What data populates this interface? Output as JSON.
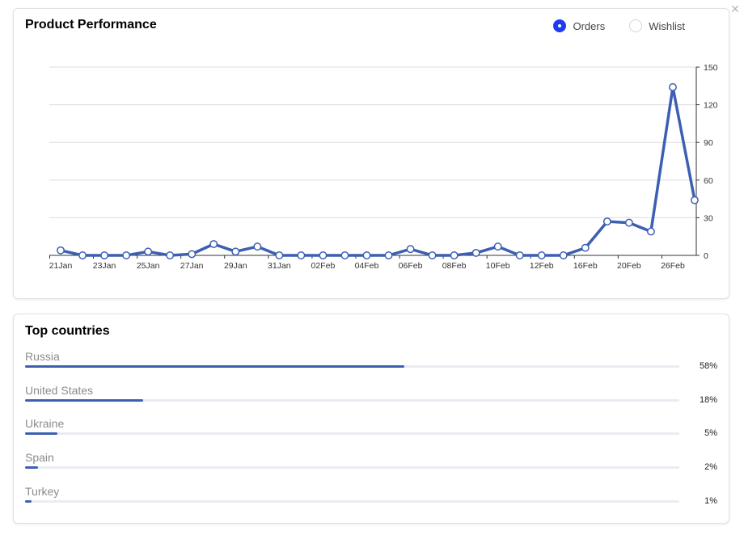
{
  "performance": {
    "title": "Product Performance",
    "options": [
      {
        "label": "Orders",
        "selected": true
      },
      {
        "label": "Wishlist",
        "selected": false
      }
    ]
  },
  "close_icon": "close-icon",
  "chart_data": {
    "type": "line",
    "x_tick_labels": [
      "21Jan",
      "23Jan",
      "25Jan",
      "27Jan",
      "29Jan",
      "31Jan",
      "02Feb",
      "04Feb",
      "06Feb",
      "08Feb",
      "10Feb",
      "12Feb",
      "16Feb",
      "20Feb",
      "26Feb"
    ],
    "y_ticks": [
      0,
      30,
      60,
      90,
      120,
      150
    ],
    "ylim": [
      0,
      150
    ],
    "y_axis_side": "right",
    "grid": true,
    "series": [
      {
        "color": "#3d5fb3",
        "values": [
          4,
          0,
          0,
          0,
          3,
          0,
          1,
          9,
          3,
          7,
          0,
          0,
          0,
          0,
          0,
          0,
          5,
          0,
          0,
          2,
          7,
          0,
          0,
          0,
          6,
          27,
          26,
          19,
          134,
          44
        ]
      }
    ]
  },
  "countries": {
    "title": "Top countries",
    "items": [
      {
        "name": "Russia",
        "pct_label": "58%",
        "value": 0.58
      },
      {
        "name": "United States",
        "pct_label": "18%",
        "value": 0.18
      },
      {
        "name": "Ukraine",
        "pct_label": "5%",
        "value": 0.05
      },
      {
        "name": "Spain",
        "pct_label": "2%",
        "value": 0.02
      },
      {
        "name": "Turkey",
        "pct_label": "1%",
        "value": 0.01
      }
    ]
  }
}
